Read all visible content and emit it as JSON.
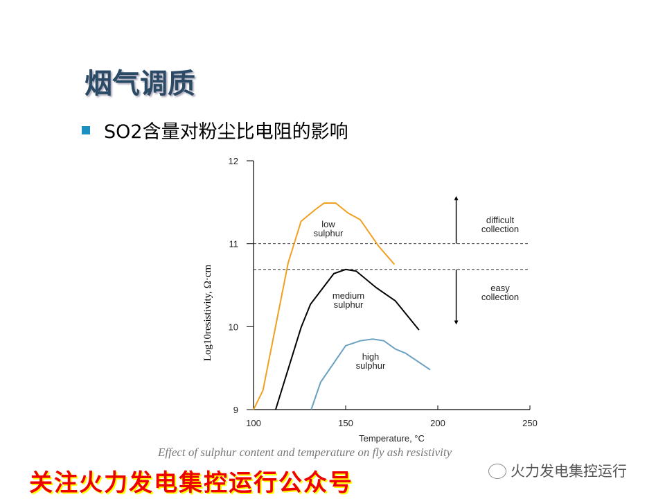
{
  "slide": {
    "title": "烟气调质",
    "bullet": "SO2含量对粉尘比电阻的影响",
    "caption": "Effect of sulphur content and temperature on fly ash resistivity",
    "promo_banner": "关注火力发电集控运行公众号",
    "watermark": "火力发电集控运行",
    "accent_color": "#1a8fc0"
  },
  "chart_data": {
    "type": "line",
    "xlabel": "Temperature, °C",
    "ylabel": "Log10resistivity, Ω·cm",
    "xlim": [
      100,
      250
    ],
    "ylim": [
      9,
      12
    ],
    "xticks": [
      "100",
      "150",
      "200",
      "250"
    ],
    "yticks": [
      "9",
      "10",
      "11",
      "12"
    ],
    "grid": false,
    "series": [
      {
        "name": "low sulphur",
        "color": "#f0a020",
        "x": [
          100,
          105.1,
          118.8,
          125.8,
          133.4,
          138.3,
          144.6,
          151.3,
          157.9,
          167.9,
          176.5
        ],
        "y": [
          9.0,
          9.23,
          10.77,
          11.27,
          11.41,
          11.49,
          11.49,
          11.37,
          11.29,
          10.97,
          10.75
        ]
      },
      {
        "name": "medium sulphur",
        "color": "#000000",
        "x": [
          112,
          125.8,
          130.9,
          143.6,
          150,
          155.7,
          166.6,
          177,
          189.8
        ],
        "y": [
          9.0,
          9.99,
          10.27,
          10.64,
          10.69,
          10.67,
          10.47,
          10.31,
          9.96
        ]
      },
      {
        "name": "high sulphur",
        "color": "#6aa0c0",
        "x": [
          131.3,
          136.4,
          150,
          157.9,
          164.7,
          170.7,
          177,
          182.5,
          195.9
        ],
        "y": [
          9.0,
          9.33,
          9.77,
          9.83,
          9.85,
          9.83,
          9.73,
          9.68,
          9.48
        ]
      }
    ],
    "thresholds": [
      11.0,
      10.69
    ],
    "annotations": {
      "upper": [
        "difficult",
        "collection"
      ],
      "lower": [
        "easy",
        "collection"
      ]
    }
  }
}
